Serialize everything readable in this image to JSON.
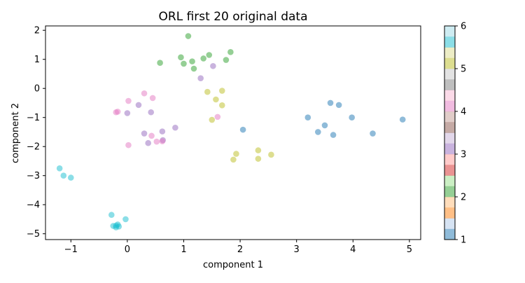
{
  "chart_data": {
    "type": "scatter",
    "title": "ORL first 20 original data",
    "xlabel": "component 1",
    "ylabel": "component 2",
    "xlim": [
      -1.45,
      5.2
    ],
    "ylim": [
      -5.2,
      2.15
    ],
    "xticks": [
      -1,
      0,
      1,
      2,
      3,
      4,
      5
    ],
    "yticks": [
      2,
      1,
      0,
      -1,
      -2,
      -3,
      -4,
      -5
    ],
    "xtick_labels": [
      "−1",
      "0",
      "1",
      "2",
      "3",
      "4",
      "5"
    ],
    "ytick_labels": [
      "2",
      "1",
      "0",
      "−1",
      "−2",
      "−3",
      "−4",
      "−5"
    ],
    "grid": false,
    "colorbar": {
      "range": [
        1,
        6
      ],
      "ticks": [
        1,
        2,
        3,
        4,
        5,
        6
      ],
      "tick_labels": [
        "1",
        "2",
        "3",
        "4",
        "5",
        "6"
      ],
      "colors": [
        "#1f77b4",
        "#aec7e8",
        "#ff7f0e",
        "#ffbb78",
        "#2ca02c",
        "#98df8a",
        "#d62728",
        "#ff9896",
        "#9467bd",
        "#c5b0d5",
        "#8c564b",
        "#c49c94",
        "#e377c2",
        "#f7b6d2",
        "#7f7f7f",
        "#c7c7c7",
        "#bcbd22",
        "#dbdb8d",
        "#17becf",
        "#9edae5"
      ]
    },
    "series": [
      {
        "color": "#1f77b4",
        "points": [
          [
            2.05,
            -1.42
          ],
          [
            3.2,
            -1.0
          ],
          [
            3.38,
            -1.5
          ],
          [
            3.5,
            -1.27
          ],
          [
            3.6,
            -0.5
          ],
          [
            3.65,
            -1.6
          ],
          [
            3.75,
            -0.57
          ],
          [
            3.98,
            -1.0
          ],
          [
            4.35,
            -1.55
          ],
          [
            4.88,
            -1.07
          ]
        ]
      },
      {
        "color": "#2ca02c",
        "points": [
          [
            0.58,
            0.88
          ],
          [
            0.95,
            1.07
          ],
          [
            1.0,
            0.85
          ],
          [
            1.08,
            1.8
          ],
          [
            1.15,
            0.93
          ],
          [
            1.18,
            0.68
          ],
          [
            1.35,
            1.03
          ],
          [
            1.45,
            1.15
          ],
          [
            1.75,
            0.98
          ],
          [
            1.83,
            1.25
          ]
        ]
      },
      {
        "color": "#9467bd",
        "points": [
          [
            0.0,
            -0.85
          ],
          [
            0.2,
            -0.57
          ],
          [
            0.3,
            -1.55
          ],
          [
            0.37,
            -1.88
          ],
          [
            0.42,
            -0.82
          ],
          [
            0.62,
            -1.48
          ],
          [
            0.63,
            -1.78
          ],
          [
            0.85,
            -1.35
          ],
          [
            1.3,
            0.35
          ],
          [
            1.52,
            0.77
          ]
        ]
      },
      {
        "color": "#e377c2",
        "points": [
          [
            -0.2,
            -0.82
          ],
          [
            -0.17,
            -0.8
          ],
          [
            0.02,
            -0.43
          ],
          [
            0.02,
            -1.95
          ],
          [
            0.3,
            -0.17
          ],
          [
            0.43,
            -1.63
          ],
          [
            0.45,
            -0.33
          ],
          [
            0.52,
            -1.83
          ],
          [
            0.62,
            -1.82
          ],
          [
            1.6,
            -0.98
          ]
        ]
      },
      {
        "color": "#bcbd22",
        "points": [
          [
            1.42,
            -0.12
          ],
          [
            1.5,
            -1.08
          ],
          [
            1.57,
            -0.38
          ],
          [
            1.68,
            -0.08
          ],
          [
            1.68,
            -0.58
          ],
          [
            1.88,
            -2.45
          ],
          [
            1.93,
            -2.25
          ],
          [
            2.32,
            -2.13
          ],
          [
            2.32,
            -2.42
          ],
          [
            2.55,
            -2.28
          ]
        ]
      },
      {
        "color": "#17becf",
        "points": [
          [
            -1.2,
            -2.75
          ],
          [
            -1.13,
            -3.0
          ],
          [
            -1.0,
            -3.07
          ],
          [
            -0.28,
            -4.35
          ],
          [
            -0.25,
            -4.73
          ],
          [
            -0.2,
            -4.78
          ],
          [
            -0.17,
            -4.68
          ],
          [
            -0.15,
            -4.75
          ],
          [
            -0.03,
            -4.5
          ],
          [
            -0.2,
            -4.72
          ]
        ]
      }
    ]
  }
}
